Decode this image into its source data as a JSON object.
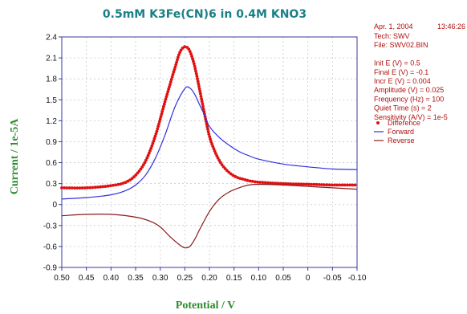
{
  "chart_data": {
    "type": "line",
    "title": "0.5mM K3Fe(CN)6 in 0.4M KNO3",
    "xlabel": "Potential / V",
    "ylabel": "Current / 1e-5A",
    "xlim": [
      0.5,
      -0.1
    ],
    "ylim": [
      -0.9,
      2.4
    ],
    "x_reversed": true,
    "grid": true,
    "legend_position": "right",
    "x_ticks": [
      "0.50",
      "0.45",
      "0.40",
      "0.35",
      "0.30",
      "0.25",
      "0.20",
      "0.15",
      "0.10",
      "0.05",
      "0",
      "-0.05",
      "-0.10"
    ],
    "y_ticks": [
      "2.4",
      "2.1",
      "1.8",
      "1.5",
      "1.2",
      "0.9",
      "0.6",
      "0.3",
      "0",
      "-0.3",
      "-0.6",
      "-0.9"
    ],
    "series": [
      {
        "name": "Difference",
        "style": "points",
        "color": "#e01010",
        "x": [
          0.5,
          0.45,
          0.4,
          0.37,
          0.35,
          0.33,
          0.31,
          0.29,
          0.27,
          0.26,
          0.25,
          0.24,
          0.23,
          0.22,
          0.21,
          0.2,
          0.19,
          0.18,
          0.17,
          0.16,
          0.15,
          0.14,
          0.13,
          0.12,
          0.11,
          0.1,
          0.05,
          0.0,
          -0.05,
          -0.1
        ],
        "y": [
          0.24,
          0.24,
          0.27,
          0.32,
          0.42,
          0.62,
          0.98,
          1.48,
          1.96,
          2.18,
          2.26,
          2.2,
          1.98,
          1.65,
          1.3,
          0.98,
          0.78,
          0.63,
          0.53,
          0.46,
          0.41,
          0.38,
          0.36,
          0.34,
          0.33,
          0.32,
          0.3,
          0.29,
          0.28,
          0.28
        ]
      },
      {
        "name": "Forward",
        "style": "line",
        "color": "#3030e0",
        "x": [
          0.5,
          0.45,
          0.4,
          0.37,
          0.35,
          0.33,
          0.31,
          0.29,
          0.27,
          0.25,
          0.24,
          0.23,
          0.22,
          0.21,
          0.2,
          0.18,
          0.16,
          0.14,
          0.12,
          0.1,
          0.05,
          0.0,
          -0.05,
          -0.1
        ],
        "y": [
          0.08,
          0.1,
          0.14,
          0.2,
          0.28,
          0.42,
          0.66,
          1.0,
          1.4,
          1.66,
          1.67,
          1.58,
          1.43,
          1.28,
          1.12,
          0.96,
          0.85,
          0.76,
          0.7,
          0.65,
          0.58,
          0.54,
          0.51,
          0.5
        ]
      },
      {
        "name": "Reverse",
        "style": "line",
        "color": "#8b1a1a",
        "x": [
          0.5,
          0.45,
          0.4,
          0.35,
          0.32,
          0.3,
          0.28,
          0.26,
          0.25,
          0.24,
          0.23,
          0.22,
          0.2,
          0.18,
          0.16,
          0.14,
          0.12,
          0.1,
          0.05,
          0.0,
          -0.05,
          -0.1
        ],
        "y": [
          -0.16,
          -0.14,
          -0.14,
          -0.18,
          -0.24,
          -0.32,
          -0.46,
          -0.58,
          -0.62,
          -0.6,
          -0.5,
          -0.36,
          -0.1,
          0.08,
          0.18,
          0.24,
          0.28,
          0.29,
          0.28,
          0.26,
          0.24,
          0.22
        ]
      }
    ]
  },
  "info_panel": {
    "date": "Apr. 1, 2004",
    "time": "13:46:26",
    "lines": [
      "Tech: SWV",
      "File: SWV02.BIN",
      "",
      "Init E (V) = 0.5",
      "Final E (V) = -0.1",
      "Incr E (V) = 0.004",
      "Amplitude (V) = 0.025",
      "Frequency (Hz) = 100",
      "Quiet Time (s) = 2",
      "Sensitivity (A/V) = 1e-5"
    ]
  }
}
